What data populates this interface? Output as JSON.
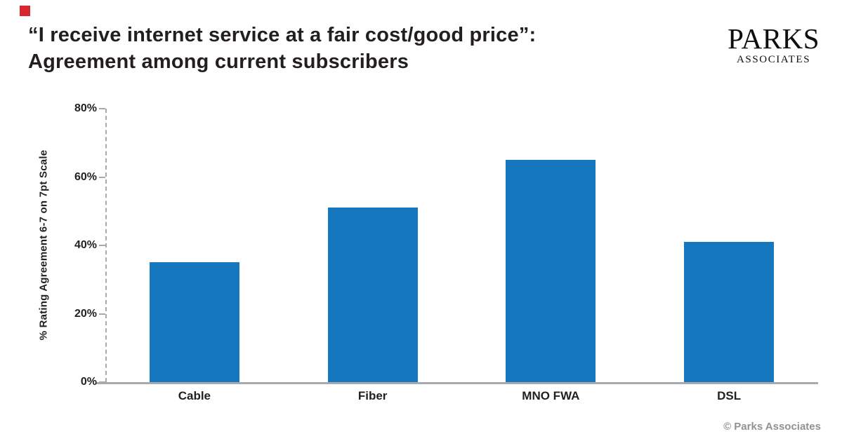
{
  "brand": {
    "logo_line1": "PARKS",
    "logo_line2": "ASSOCIATES",
    "accent_square_color": "#d7282f"
  },
  "header": {
    "title_line1": "“I receive internet service at a fair cost/good price”:",
    "title_line2": "Agreement among current subscribers"
  },
  "footer": {
    "copyright": "© Parks Associates"
  },
  "chart_data": {
    "type": "bar",
    "title": "“I receive internet service at a fair cost/good price”: Agreement among current subscribers",
    "categories": [
      "Cable",
      "Fiber",
      "MNO FWA",
      "DSL"
    ],
    "values": [
      35,
      51,
      65,
      41
    ],
    "xlabel": "",
    "ylabel": "% Rating Agreement 6-7 on 7pt Scale",
    "ylim": [
      0,
      80
    ],
    "yticks": [
      "0%",
      "20%",
      "40%",
      "60%",
      "80%"
    ],
    "bar_color": "#1577bd",
    "axis_color": "#a7a9ac",
    "grid": false,
    "legend": false
  }
}
